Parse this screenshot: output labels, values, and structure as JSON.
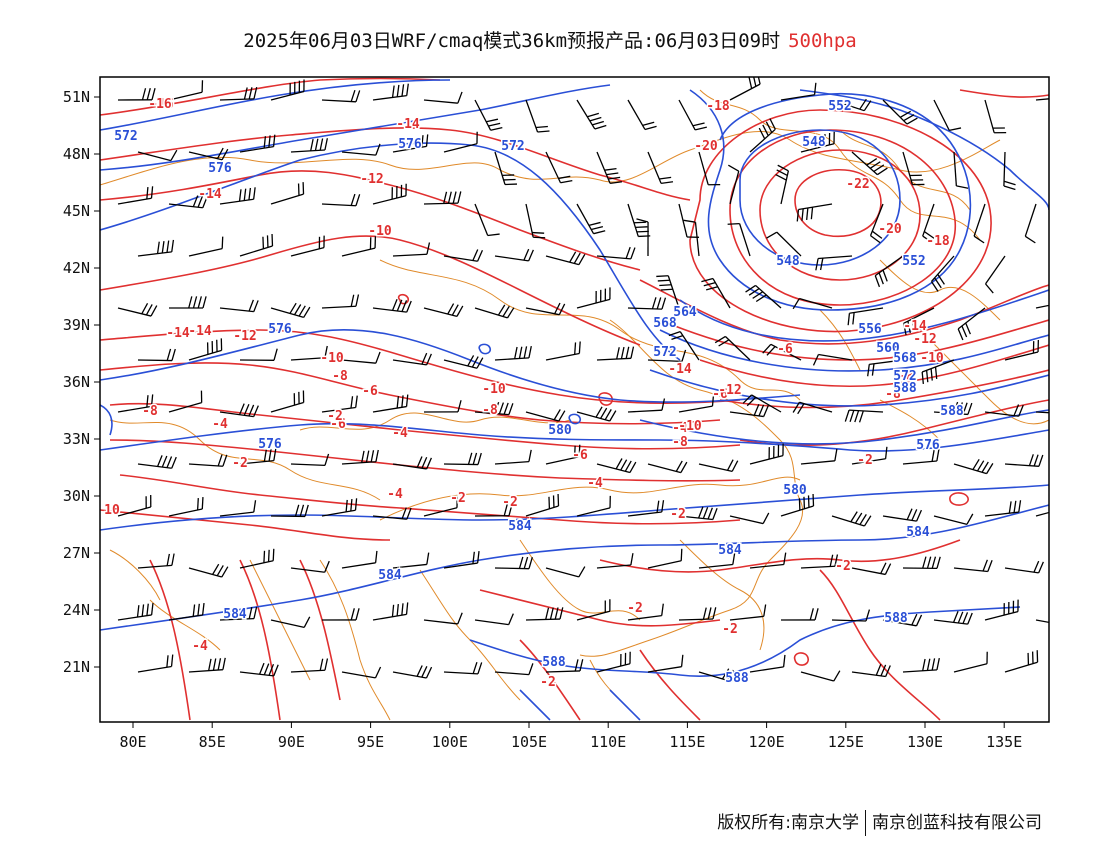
{
  "title": {
    "main": "2025年06月03日WRF/cmaq模式36km预报产品:06月03日09时",
    "level": "500hpa"
  },
  "map": {
    "lat_ticks": [
      "51N",
      "48N",
      "45N",
      "42N",
      "39N",
      "36N",
      "33N",
      "30N",
      "27N",
      "24N",
      "21N"
    ],
    "lon_ticks": [
      "80E",
      "85E",
      "90E",
      "95E",
      "100E",
      "105E",
      "110E",
      "115E",
      "120E",
      "125E",
      "130E",
      "135E"
    ],
    "colors": {
      "geopotential": "#2a4fd6",
      "temperature": "#e03030",
      "borders": "#e08a2a",
      "wind": "#000000",
      "frame": "#000000"
    },
    "temperature_labels": [
      {
        "text": "-16"
      },
      {
        "text": "-14"
      },
      {
        "text": "-14"
      },
      {
        "text": "-12"
      },
      {
        "text": "-10"
      },
      {
        "text": "-14"
      },
      {
        "text": "-12"
      },
      {
        "text": "-10"
      },
      {
        "text": "-8"
      },
      {
        "text": "-6"
      },
      {
        "text": "-8"
      },
      {
        "text": "-4"
      },
      {
        "text": "-2"
      },
      {
        "text": "-4"
      },
      {
        "text": "-2"
      },
      {
        "text": "-2"
      },
      {
        "text": "10"
      },
      {
        "text": "-4"
      },
      {
        "text": "-6"
      },
      {
        "text": "-8"
      },
      {
        "text": "-10"
      },
      {
        "text": "-4"
      },
      {
        "text": "-6"
      },
      {
        "text": "-2"
      },
      {
        "text": "-6"
      },
      {
        "text": "-4"
      },
      {
        "text": "-14"
      },
      {
        "text": "-12"
      },
      {
        "text": "-10"
      },
      {
        "text": "-8"
      },
      {
        "text": "-2"
      },
      {
        "text": "-2"
      },
      {
        "text": "-2"
      },
      {
        "text": "-2"
      },
      {
        "text": "-2"
      },
      {
        "text": "-18"
      },
      {
        "text": "-20"
      },
      {
        "text": "-22"
      },
      {
        "text": "-20"
      },
      {
        "text": "-18"
      },
      {
        "text": "-14"
      },
      {
        "text": "-12"
      },
      {
        "text": "-10"
      },
      {
        "text": "-8"
      },
      {
        "text": "-8"
      },
      {
        "text": "-16"
      },
      {
        "text": "-2"
      },
      {
        "text": "-4"
      },
      {
        "text": "-6"
      },
      {
        "text": "-14"
      }
    ],
    "height_labels": [
      {
        "text": "572"
      },
      {
        "text": "576"
      },
      {
        "text": "576"
      },
      {
        "text": "572"
      },
      {
        "text": "576"
      },
      {
        "text": "576"
      },
      {
        "text": "580"
      },
      {
        "text": "584"
      },
      {
        "text": "584"
      },
      {
        "text": "584"
      },
      {
        "text": "588"
      },
      {
        "text": "552"
      },
      {
        "text": "548"
      },
      {
        "text": "548"
      },
      {
        "text": "552"
      },
      {
        "text": "556"
      },
      {
        "text": "560"
      },
      {
        "text": "564"
      },
      {
        "text": "568"
      },
      {
        "text": "572"
      },
      {
        "text": "580"
      },
      {
        "text": "584"
      },
      {
        "text": "584"
      },
      {
        "text": "588"
      },
      {
        "text": "588"
      },
      {
        "text": "568"
      },
      {
        "text": "572"
      },
      {
        "text": "576"
      },
      {
        "text": "588"
      },
      {
        "text": "588"
      }
    ]
  },
  "copyright": {
    "left": "版权所有:南京大学",
    "right": "南京创蓝科技有限公司"
  }
}
